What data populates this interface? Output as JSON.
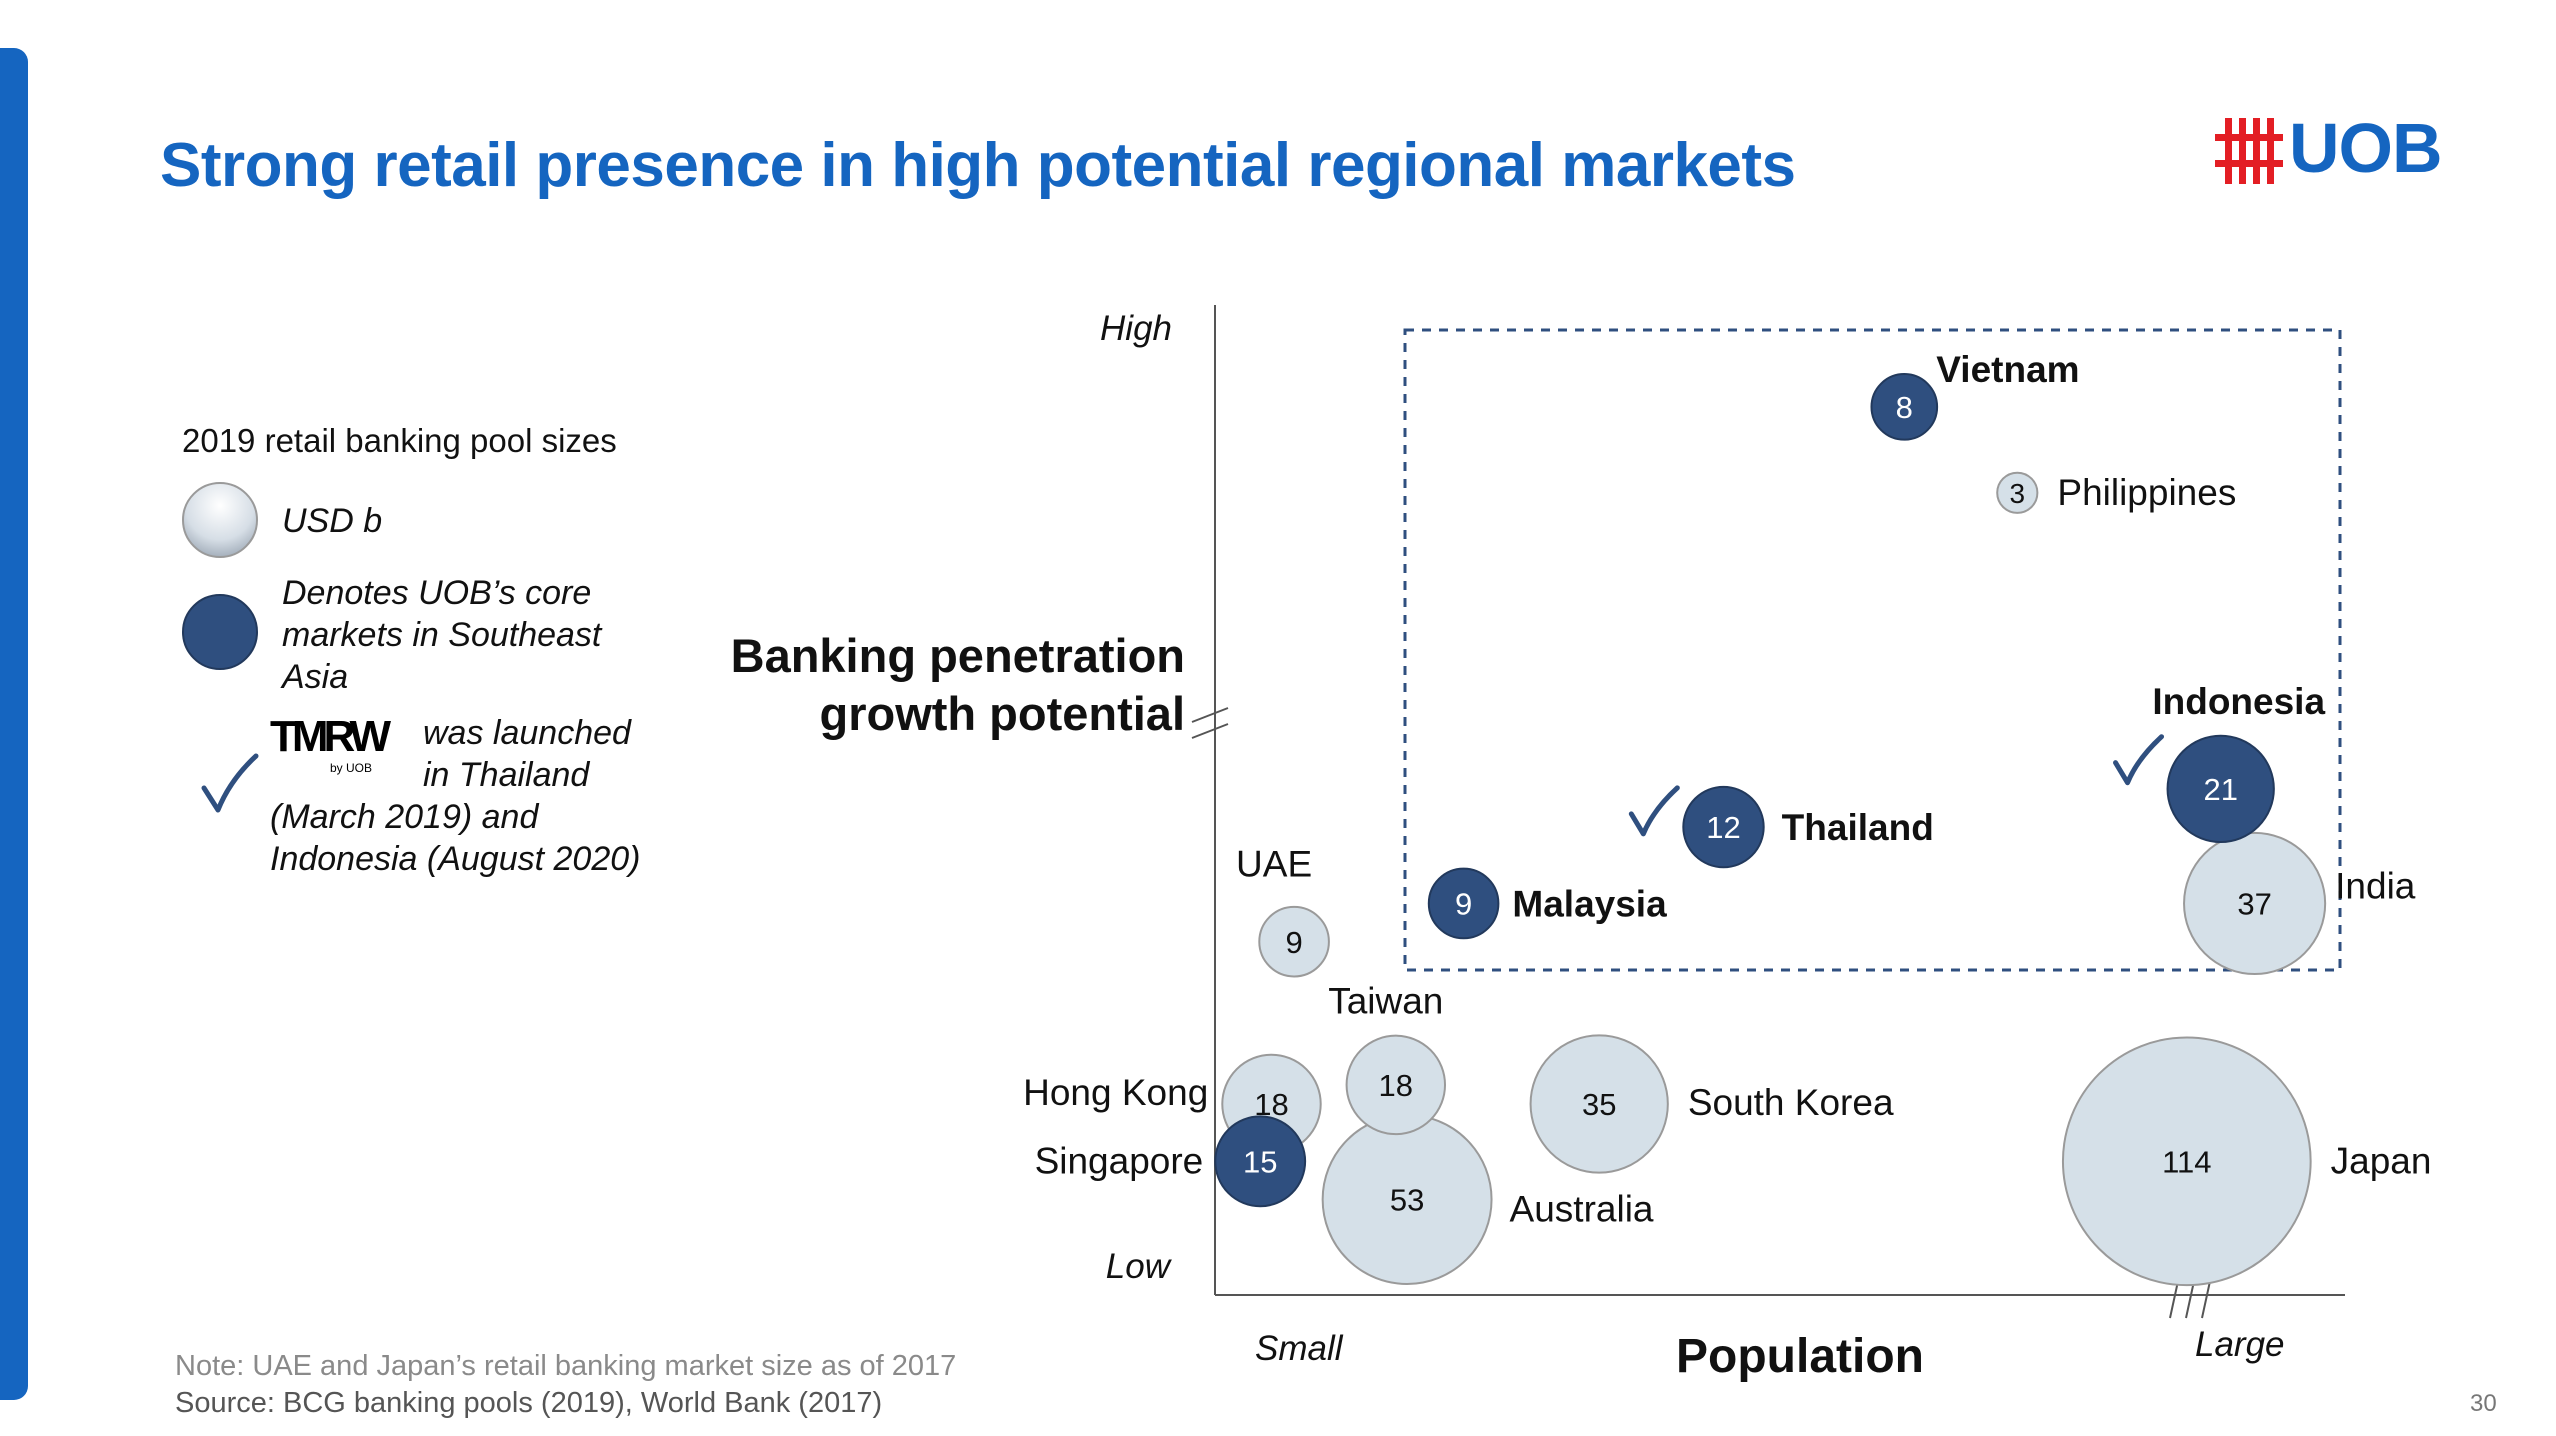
{
  "slide": {
    "title": "Strong retail presence in high potential regional markets",
    "brand_color": "#1565c0",
    "page_number": "30",
    "logo": {
      "text": "UOB",
      "icon": "uob-flag-icon",
      "icon_color": "#e31e24",
      "text_color": "#1565c0"
    },
    "note": "Note: UAE and Japan’s retail banking market size as of 2017",
    "source": "Source: BCG banking pools (2019), World Bank (2017)"
  },
  "legend": {
    "title": "2019 retail banking pool sizes",
    "usd_label": "USD b",
    "core_label_lines": [
      "Denotes UOB’s core",
      "markets in Southeast",
      "Asia"
    ],
    "tmrw_logo_text": "TMRW",
    "tmrw_sub_text": "by UOB",
    "launch_lines": [
      "was launched",
      "in Thailand",
      "(March 2019) and",
      "Indonesia (August 2020)"
    ],
    "checkmark_icon": "checkmark-icon"
  },
  "chart_data": {
    "type": "scatter",
    "subtype": "bubble",
    "value_unit": "USD b",
    "ylabel_lines": [
      "Banking penetration",
      "growth potential"
    ],
    "xlabel": "Population",
    "x_tick_labels": {
      "low": "Small",
      "high": "Large"
    },
    "y_tick_labels": {
      "low": "Low",
      "high": "High"
    },
    "grid": false,
    "highlight_region": "dashed box around high growth potential markets",
    "colors": {
      "core": "#2f4f7f",
      "other": "#d5e0e8",
      "outline": "#9a9a9a",
      "highlight_box": "#2f4f7f"
    },
    "points": [
      {
        "name": "Vietnam",
        "value": 8,
        "x": 0.61,
        "y": 0.93,
        "core": true,
        "bold": true
      },
      {
        "name": "Philippines",
        "value": 3,
        "x": 0.71,
        "y": 0.84,
        "core": false,
        "bold": false
      },
      {
        "name": "Indonesia",
        "value": 21,
        "x": 0.89,
        "y": 0.53,
        "core": true,
        "bold": true,
        "tmrw": true
      },
      {
        "name": "Thailand",
        "value": 12,
        "x": 0.45,
        "y": 0.49,
        "core": true,
        "bold": true,
        "tmrw": true
      },
      {
        "name": "India",
        "value": 37,
        "x": 0.92,
        "y": 0.41,
        "core": false,
        "bold": false
      },
      {
        "name": "Malaysia",
        "value": 9,
        "x": 0.22,
        "y": 0.41,
        "core": true,
        "bold": true
      },
      {
        "name": "UAE",
        "value": 9,
        "x": 0.07,
        "y": 0.37,
        "core": false,
        "bold": false
      },
      {
        "name": "Taiwan",
        "value": 18,
        "x": 0.16,
        "y": 0.22,
        "core": false,
        "bold": false
      },
      {
        "name": "Hong Kong",
        "value": 18,
        "x": 0.05,
        "y": 0.2,
        "core": false,
        "bold": false
      },
      {
        "name": "Singapore",
        "value": 15,
        "x": 0.04,
        "y": 0.14,
        "core": true,
        "bold": false
      },
      {
        "name": "Australia",
        "value": 53,
        "x": 0.17,
        "y": 0.1,
        "core": false,
        "bold": false
      },
      {
        "name": "South Korea",
        "value": 35,
        "x": 0.34,
        "y": 0.2,
        "core": false,
        "bold": false
      },
      {
        "name": "Japan",
        "value": 114,
        "x": 0.86,
        "y": 0.14,
        "core": false,
        "bold": false
      }
    ]
  }
}
